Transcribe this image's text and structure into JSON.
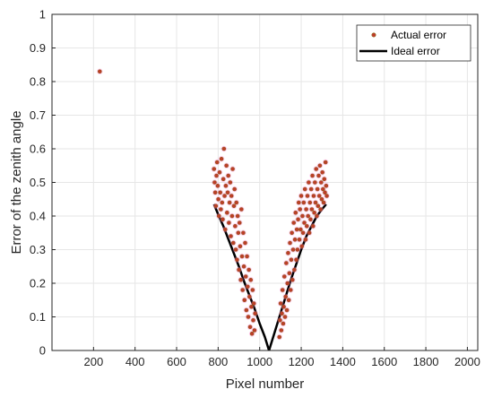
{
  "chart_data": {
    "type": "scatter",
    "xlabel": "Pixel number",
    "ylabel": "Error of the zenith angle",
    "xlim": [
      0,
      2050
    ],
    "ylim": [
      0,
      1
    ],
    "x_ticks": [
      200,
      400,
      600,
      800,
      1000,
      1200,
      1400,
      1600,
      1800,
      2000
    ],
    "y_ticks": [
      0,
      0.1,
      0.2,
      0.3,
      0.4,
      0.5,
      0.6,
      0.7,
      0.8,
      0.9,
      1
    ],
    "grid": true,
    "legend_position": "top-right",
    "colors": {
      "actual_error_face": "#c0392b",
      "actual_error_edge": "#8b6914",
      "actual_error_halo": "#ff66cc",
      "ideal_error": "#000000",
      "grid": "#e6e6e6"
    },
    "series": [
      {
        "name": "Actual error",
        "kind": "scatter",
        "points": [
          [
            230,
            0.83
          ],
          [
            780,
            0.54
          ],
          [
            783,
            0.5
          ],
          [
            786,
            0.47
          ],
          [
            789,
            0.43
          ],
          [
            792,
            0.52
          ],
          [
            795,
            0.56
          ],
          [
            798,
            0.49
          ],
          [
            801,
            0.45
          ],
          [
            804,
            0.4
          ],
          [
            807,
            0.53
          ],
          [
            810,
            0.47
          ],
          [
            813,
            0.42
          ],
          [
            816,
            0.57
          ],
          [
            819,
            0.44
          ],
          [
            822,
            0.39
          ],
          [
            825,
            0.51
          ],
          [
            828,
            0.6
          ],
          [
            831,
            0.46
          ],
          [
            834,
            0.36
          ],
          [
            837,
            0.49
          ],
          [
            840,
            0.55
          ],
          [
            843,
            0.41
          ],
          [
            846,
            0.47
          ],
          [
            849,
            0.52
          ],
          [
            852,
            0.38
          ],
          [
            855,
            0.44
          ],
          [
            858,
            0.5
          ],
          [
            861,
            0.34
          ],
          [
            864,
            0.46
          ],
          [
            867,
            0.4
          ],
          [
            870,
            0.54
          ],
          [
            873,
            0.32
          ],
          [
            876,
            0.43
          ],
          [
            879,
            0.48
          ],
          [
            882,
            0.37
          ],
          [
            885,
            0.3
          ],
          [
            888,
            0.44
          ],
          [
            891,
            0.27
          ],
          [
            894,
            0.4
          ],
          [
            897,
            0.35
          ],
          [
            900,
            0.24
          ],
          [
            903,
            0.38
          ],
          [
            906,
            0.31
          ],
          [
            909,
            0.21
          ],
          [
            912,
            0.42
          ],
          [
            915,
            0.28
          ],
          [
            918,
            0.18
          ],
          [
            921,
            0.35
          ],
          [
            924,
            0.25
          ],
          [
            927,
            0.15
          ],
          [
            930,
            0.32
          ],
          [
            933,
            0.22
          ],
          [
            936,
            0.12
          ],
          [
            939,
            0.28
          ],
          [
            942,
            0.19
          ],
          [
            945,
            0.1
          ],
          [
            948,
            0.24
          ],
          [
            951,
            0.16
          ],
          [
            954,
            0.07
          ],
          [
            957,
            0.21
          ],
          [
            960,
            0.13
          ],
          [
            963,
            0.05
          ],
          [
            966,
            0.18
          ],
          [
            969,
            0.09
          ],
          [
            972,
            0.14
          ],
          [
            975,
            0.06
          ],
          [
            978,
            0.11
          ],
          [
            1095,
            0.04
          ],
          [
            1098,
            0.09
          ],
          [
            1101,
            0.14
          ],
          [
            1104,
            0.06
          ],
          [
            1107,
            0.11
          ],
          [
            1110,
            0.18
          ],
          [
            1113,
            0.08
          ],
          [
            1116,
            0.13
          ],
          [
            1119,
            0.22
          ],
          [
            1122,
            0.1
          ],
          [
            1125,
            0.16
          ],
          [
            1128,
            0.26
          ],
          [
            1131,
            0.12
          ],
          [
            1134,
            0.2
          ],
          [
            1137,
            0.29
          ],
          [
            1140,
            0.15
          ],
          [
            1143,
            0.23
          ],
          [
            1146,
            0.32
          ],
          [
            1149,
            0.18
          ],
          [
            1152,
            0.27
          ],
          [
            1155,
            0.35
          ],
          [
            1158,
            0.21
          ],
          [
            1161,
            0.3
          ],
          [
            1164,
            0.38
          ],
          [
            1167,
            0.24
          ],
          [
            1170,
            0.33
          ],
          [
            1173,
            0.41
          ],
          [
            1176,
            0.27
          ],
          [
            1179,
            0.36
          ],
          [
            1182,
            0.3
          ],
          [
            1185,
            0.39
          ],
          [
            1188,
            0.44
          ],
          [
            1191,
            0.33
          ],
          [
            1194,
            0.42
          ],
          [
            1197,
            0.36
          ],
          [
            1200,
            0.46
          ],
          [
            1203,
            0.31
          ],
          [
            1206,
            0.4
          ],
          [
            1209,
            0.35
          ],
          [
            1212,
            0.44
          ],
          [
            1215,
            0.38
          ],
          [
            1218,
            0.48
          ],
          [
            1221,
            0.33
          ],
          [
            1224,
            0.42
          ],
          [
            1227,
            0.37
          ],
          [
            1230,
            0.46
          ],
          [
            1233,
            0.4
          ],
          [
            1236,
            0.5
          ],
          [
            1239,
            0.35
          ],
          [
            1242,
            0.44
          ],
          [
            1245,
            0.39
          ],
          [
            1248,
            0.48
          ],
          [
            1251,
            0.42
          ],
          [
            1254,
            0.52
          ],
          [
            1257,
            0.37
          ],
          [
            1260,
            0.46
          ],
          [
            1263,
            0.41
          ],
          [
            1266,
            0.5
          ],
          [
            1269,
            0.44
          ],
          [
            1272,
            0.54
          ],
          [
            1275,
            0.4
          ],
          [
            1278,
            0.48
          ],
          [
            1281,
            0.43
          ],
          [
            1284,
            0.52
          ],
          [
            1287,
            0.46
          ],
          [
            1290,
            0.55
          ],
          [
            1293,
            0.42
          ],
          [
            1296,
            0.5
          ],
          [
            1299,
            0.45
          ],
          [
            1302,
            0.53
          ],
          [
            1305,
            0.48
          ],
          [
            1308,
            0.44
          ],
          [
            1311,
            0.51
          ],
          [
            1314,
            0.47
          ],
          [
            1317,
            0.56
          ],
          [
            1320,
            0.49
          ],
          [
            1323,
            0.46
          ]
        ]
      },
      {
        "name": "Ideal error",
        "kind": "line",
        "points": [
          [
            780,
            0.435
          ],
          [
            800,
            0.405
          ],
          [
            825,
            0.37
          ],
          [
            850,
            0.33
          ],
          [
            875,
            0.29
          ],
          [
            900,
            0.25
          ],
          [
            925,
            0.205
          ],
          [
            950,
            0.165
          ],
          [
            975,
            0.125
          ],
          [
            1000,
            0.08
          ],
          [
            1025,
            0.04
          ],
          [
            1045,
            0.0
          ],
          [
            1070,
            0.05
          ],
          [
            1100,
            0.11
          ],
          [
            1125,
            0.16
          ],
          [
            1150,
            0.21
          ],
          [
            1175,
            0.255
          ],
          [
            1200,
            0.3
          ],
          [
            1225,
            0.34
          ],
          [
            1250,
            0.37
          ],
          [
            1275,
            0.4
          ],
          [
            1300,
            0.42
          ],
          [
            1320,
            0.435
          ]
        ]
      }
    ]
  }
}
